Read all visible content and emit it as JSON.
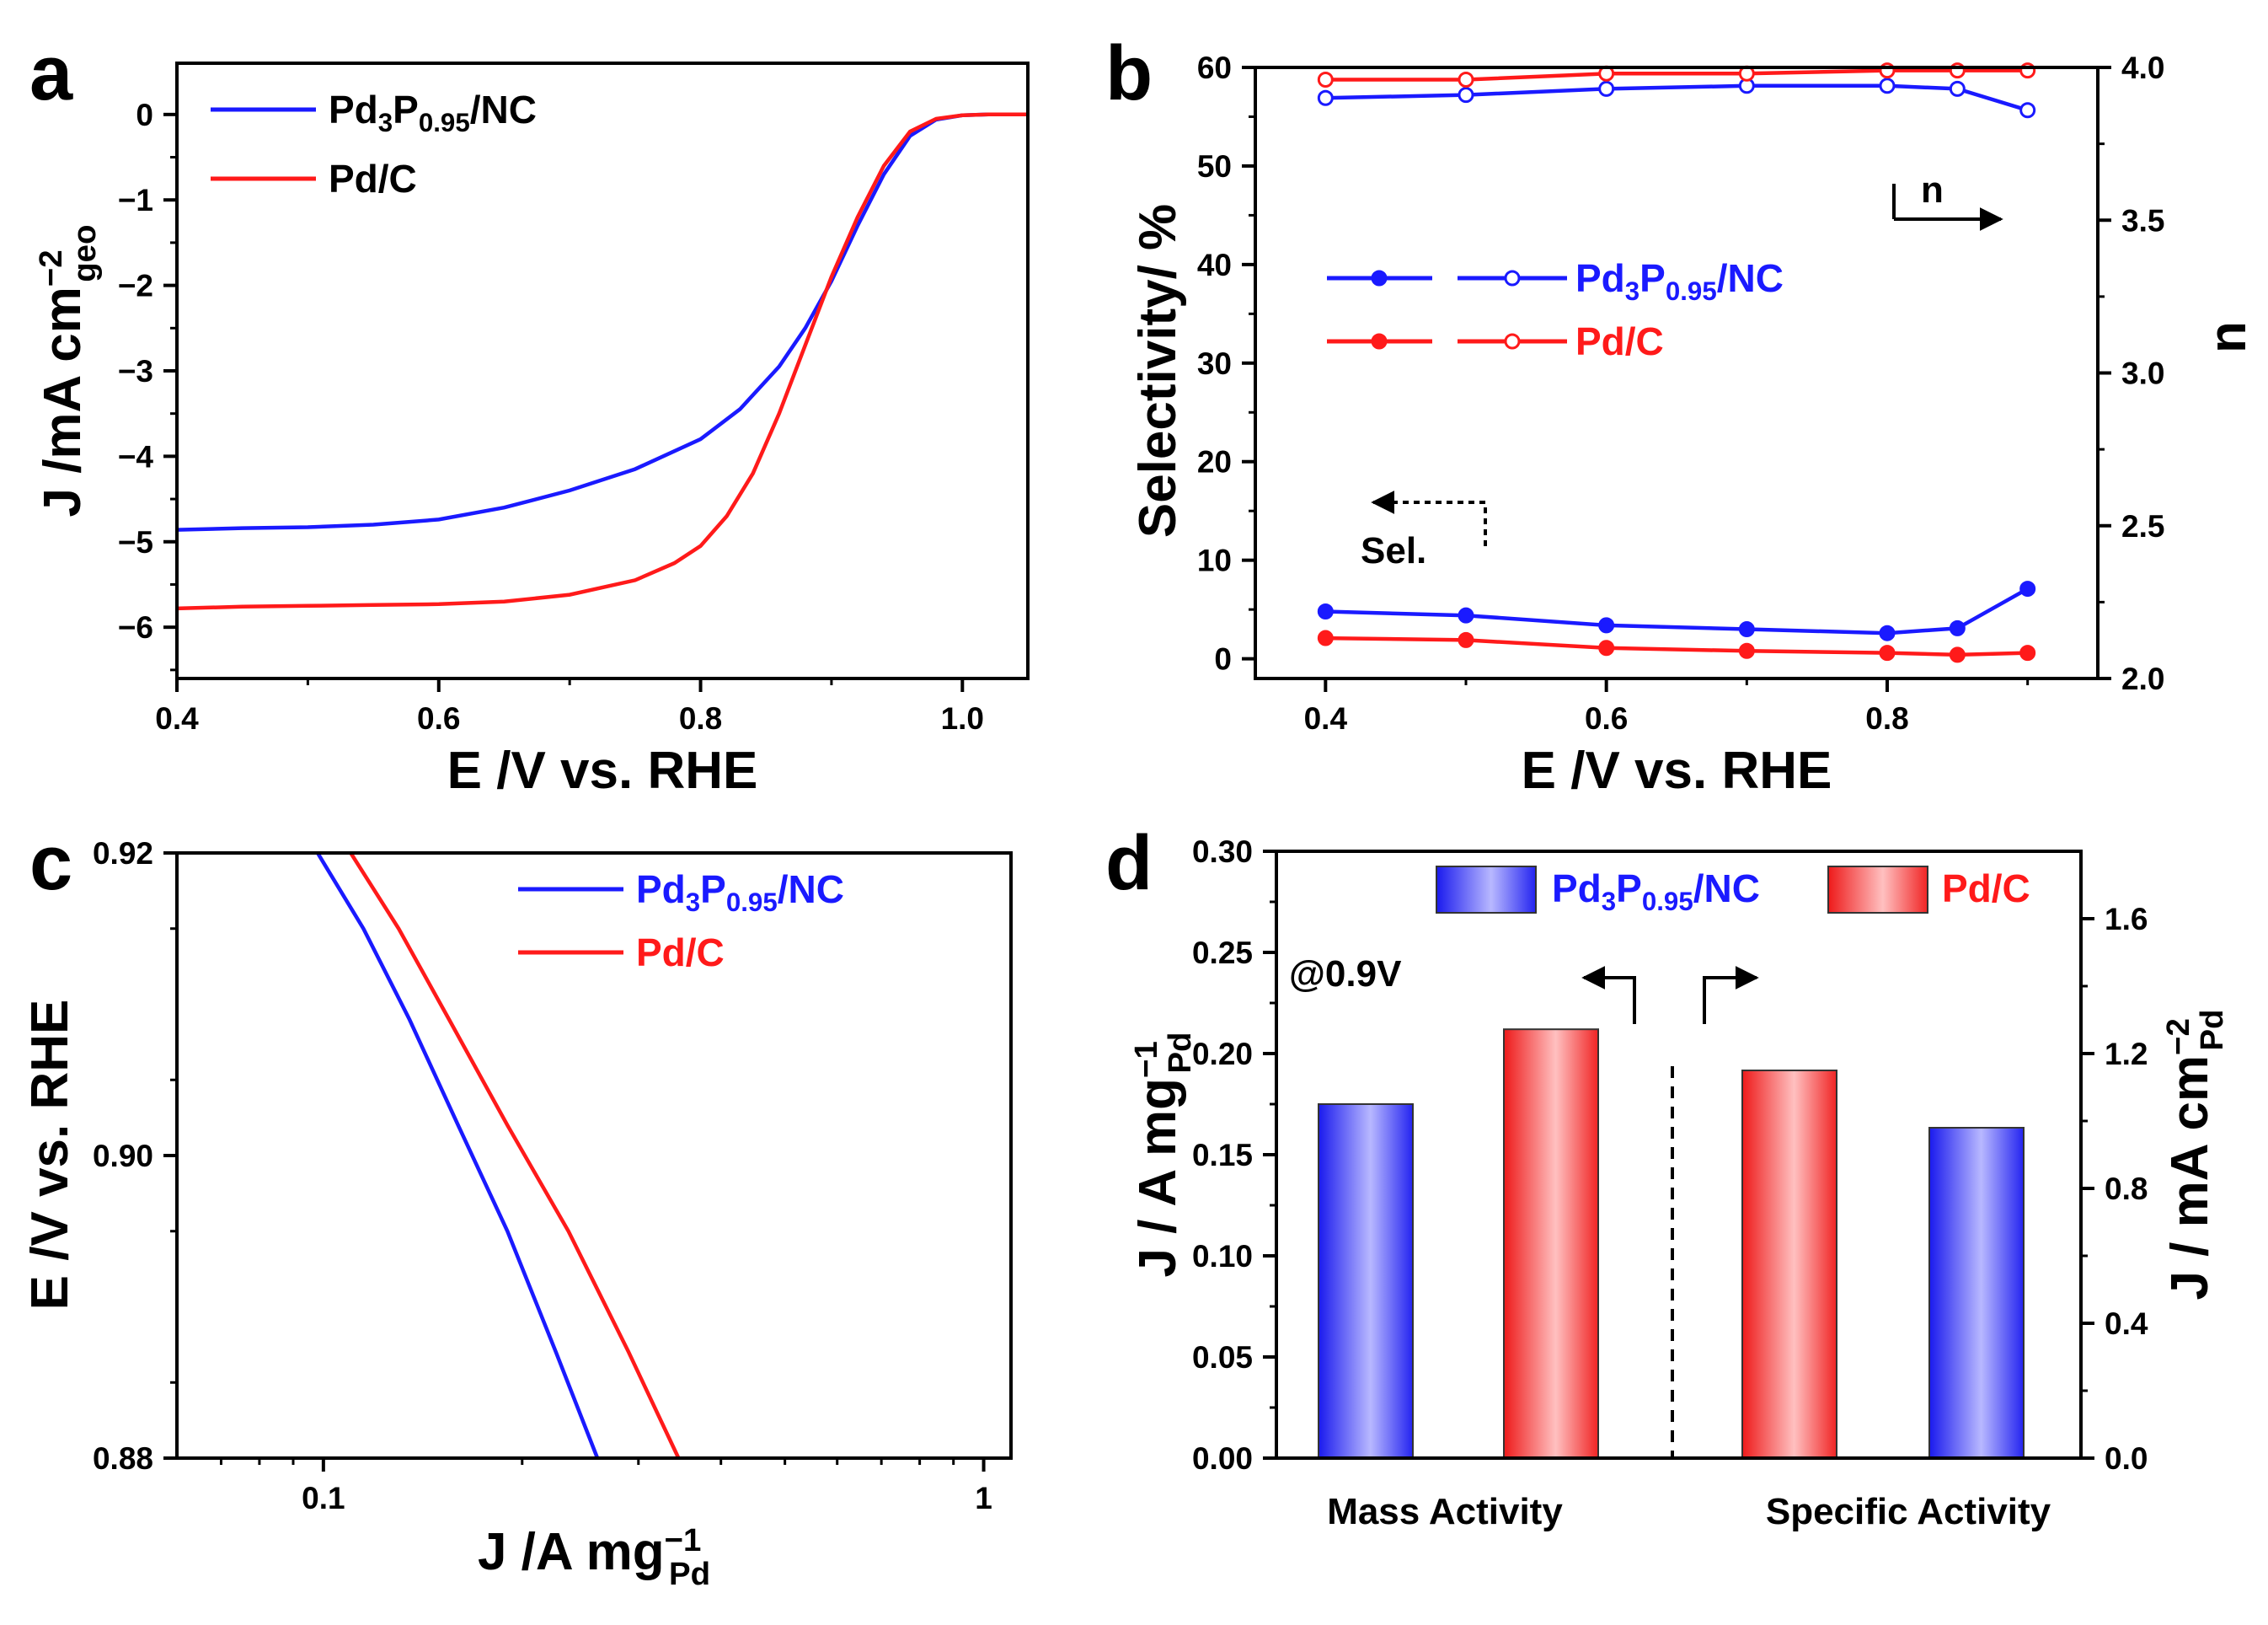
{
  "colors": {
    "blue": "#1a1aff",
    "red": "#ff1a1a",
    "black": "#000000"
  },
  "chart_data": [
    {
      "panel": "a",
      "type": "line",
      "xlabel": "E /V vs. RHE",
      "ylabel": {
        "prefix": "J /mA cm",
        "sup": "−2",
        "sub": "geo"
      },
      "xlim": [
        0.4,
        1.05
      ],
      "ylim": [
        -6.6,
        0.6
      ],
      "xticks": [
        0.4,
        0.6,
        0.8,
        1.0
      ],
      "xtick_labels": [
        "0.4",
        "0.6",
        "0.8",
        "1.0"
      ],
      "yticks": [
        0,
        -1,
        -2,
        -3,
        -4,
        -5,
        -6
      ],
      "ytick_labels": [
        "0",
        "−1",
        "−2",
        "−3",
        "−4",
        "−5",
        "−6"
      ],
      "legend": [
        {
          "base": "Pd",
          "sub1": "3",
          "mid": "P",
          "sub2": "0.95",
          "tail": "/NC",
          "color": "blue"
        },
        {
          "base": "Pd/C",
          "color": "red"
        }
      ],
      "series": [
        {
          "name": "Pd3P0.95/NC",
          "color": "blue",
          "x": [
            0.4,
            0.45,
            0.5,
            0.55,
            0.6,
            0.65,
            0.7,
            0.75,
            0.8,
            0.83,
            0.86,
            0.88,
            0.9,
            0.92,
            0.94,
            0.96,
            0.98,
            1.0,
            1.02,
            1.05
          ],
          "y": [
            -4.86,
            -4.84,
            -4.83,
            -4.8,
            -4.74,
            -4.6,
            -4.4,
            -4.15,
            -3.8,
            -3.45,
            -2.95,
            -2.5,
            -1.95,
            -1.3,
            -0.7,
            -0.25,
            -0.06,
            -0.01,
            0.0,
            0.0
          ]
        },
        {
          "name": "Pd/C",
          "color": "red",
          "x": [
            0.4,
            0.45,
            0.5,
            0.55,
            0.6,
            0.65,
            0.7,
            0.75,
            0.78,
            0.8,
            0.82,
            0.84,
            0.86,
            0.88,
            0.9,
            0.92,
            0.94,
            0.96,
            0.98,
            1.0,
            1.02,
            1.05
          ],
          "y": [
            -5.78,
            -5.76,
            -5.75,
            -5.74,
            -5.73,
            -5.7,
            -5.62,
            -5.45,
            -5.25,
            -5.05,
            -4.7,
            -4.2,
            -3.5,
            -2.7,
            -1.9,
            -1.2,
            -0.6,
            -0.2,
            -0.05,
            -0.01,
            0.0,
            0.0
          ]
        }
      ]
    },
    {
      "panel": "b",
      "type": "line",
      "xlabel": "E /V vs. RHE",
      "ylabel": "Selectivity/ %",
      "y2label": "n",
      "xlim": [
        0.35,
        0.95
      ],
      "ylim": [
        -2,
        60
      ],
      "y2lim": [
        2.0,
        4.0
      ],
      "xticks": [
        0.4,
        0.6,
        0.8
      ],
      "xtick_labels": [
        "0.4",
        "0.6",
        "0.8"
      ],
      "yticks": [
        0,
        10,
        20,
        30,
        40,
        50,
        60
      ],
      "ytick_labels": [
        "0",
        "10",
        "20",
        "30",
        "40",
        "50",
        "60"
      ],
      "y2ticks": [
        2.0,
        2.5,
        3.0,
        3.5,
        4.0
      ],
      "y2tick_labels": [
        "2.0",
        "2.5",
        "3.0",
        "3.5",
        "4.0"
      ],
      "legend": [
        {
          "base": "Pd",
          "sub1": "3",
          "mid": "P",
          "sub2": "0.95",
          "tail": "/NC",
          "color": "blue"
        },
        {
          "base": "Pd/C",
          "color": "red"
        }
      ],
      "annotations": {
        "n_arrow": "n",
        "sel_arrow": "Sel."
      },
      "x": [
        0.4,
        0.5,
        0.6,
        0.7,
        0.8,
        0.85,
        0.9
      ],
      "series": [
        {
          "name": "Pd3P0.95/NC selectivity",
          "axis": "left",
          "color": "blue",
          "marker": "filled",
          "values": [
            4.8,
            4.4,
            3.4,
            3.0,
            2.6,
            3.1,
            7.1
          ]
        },
        {
          "name": "Pd/C selectivity",
          "axis": "left",
          "color": "red",
          "marker": "filled",
          "values": [
            2.1,
            1.9,
            1.1,
            0.8,
            0.6,
            0.4,
            0.6
          ]
        },
        {
          "name": "Pd3P0.95/NC n",
          "axis": "right",
          "color": "blue",
          "marker": "open",
          "values": [
            3.9,
            3.91,
            3.93,
            3.94,
            3.94,
            3.93,
            3.86
          ]
        },
        {
          "name": "Pd/C n",
          "axis": "right",
          "color": "red",
          "marker": "open",
          "values": [
            3.96,
            3.96,
            3.98,
            3.98,
            3.99,
            3.99,
            3.99
          ]
        }
      ]
    },
    {
      "panel": "c",
      "type": "line",
      "xscale": "log",
      "xlabel": {
        "prefix": "J /A mg",
        "sup": "−1",
        "sub": "Pd"
      },
      "ylabel": "E /V vs. RHE",
      "xlim": [
        0.06,
        1.1
      ],
      "ylim": [
        0.88,
        0.92
      ],
      "xticks": [
        0.1,
        1
      ],
      "xtick_labels": [
        "0.1",
        "1"
      ],
      "yticks": [
        0.88,
        0.9,
        0.92
      ],
      "ytick_labels": [
        "0.88",
        "0.90",
        "0.92"
      ],
      "legend": [
        {
          "base": "Pd",
          "sub1": "3",
          "mid": "P",
          "sub2": "0.95",
          "tail": "/NC",
          "color": "blue"
        },
        {
          "base": "Pd/C",
          "color": "red"
        }
      ],
      "series": [
        {
          "name": "Pd3P0.95/NC",
          "color": "blue",
          "x": [
            0.098,
            0.115,
            0.135,
            0.16,
            0.19,
            0.225,
            0.26
          ],
          "y": [
            0.92,
            0.915,
            0.909,
            0.902,
            0.895,
            0.887,
            0.88
          ]
        },
        {
          "name": "Pd/C",
          "color": "red",
          "x": [
            0.11,
            0.13,
            0.155,
            0.19,
            0.235,
            0.29,
            0.345
          ],
          "y": [
            0.92,
            0.915,
            0.909,
            0.902,
            0.895,
            0.887,
            0.88
          ]
        }
      ]
    },
    {
      "panel": "d",
      "type": "bar",
      "ylabel": {
        "prefix": "J / A mg",
        "sup": "−1",
        "sub": "Pd"
      },
      "y2label": {
        "prefix": "J / mA cm",
        "sup": "−2",
        "sub": "Pd"
      },
      "ylim": [
        0,
        0.3
      ],
      "y2lim": [
        0,
        1.8
      ],
      "yticks": [
        0.0,
        0.05,
        0.1,
        0.15,
        0.2,
        0.25,
        0.3
      ],
      "ytick_labels": [
        "0.00",
        "0.05",
        "0.10",
        "0.15",
        "0.20",
        "0.25",
        "0.30"
      ],
      "y2ticks": [
        0.0,
        0.4,
        0.8,
        1.2,
        1.6
      ],
      "y2tick_labels": [
        "0.0",
        "0.4",
        "0.8",
        "1.2",
        "1.6"
      ],
      "categories": [
        "Mass Activity",
        "Specific Activity"
      ],
      "annotation": "@0.9V",
      "legend": [
        {
          "base": "Pd",
          "sub1": "3",
          "mid": "P",
          "sub2": "0.95",
          "tail": "/NC",
          "color": "blue"
        },
        {
          "base": "Pd/C",
          "color": "red"
        }
      ],
      "bars": [
        {
          "group": "Mass Activity",
          "series": "Pd3P0.95/NC",
          "color": "blue",
          "axis": "left",
          "value": 0.175
        },
        {
          "group": "Mass Activity",
          "series": "Pd/C",
          "color": "red",
          "axis": "left",
          "value": 0.212
        },
        {
          "group": "Specific Activity",
          "series": "Pd/C",
          "color": "red",
          "axis": "right",
          "value": 1.15
        },
        {
          "group": "Specific Activity",
          "series": "Pd3P0.95/NC",
          "color": "blue",
          "axis": "right",
          "value": 0.98
        }
      ]
    }
  ],
  "panels": [
    "a",
    "b",
    "c",
    "d"
  ]
}
